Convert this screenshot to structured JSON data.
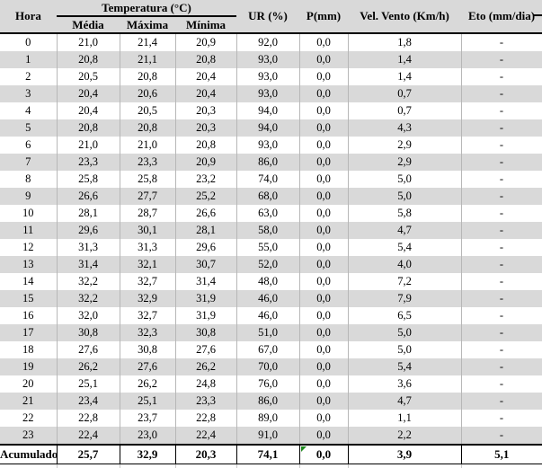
{
  "table": {
    "headers": {
      "hora": "Hora",
      "temperatura": "Temperatura (°C)",
      "media": "Média",
      "maxima": "Máxima",
      "minima": "Mínima",
      "ur": "UR (%)",
      "p": "P(mm)",
      "vento": "Vel. Vento (Km/h)",
      "eto": "Eto (mm/dia)"
    },
    "rows": [
      [
        "0",
        "21,0",
        "21,4",
        "20,9",
        "92,0",
        "0,0",
        "1,8",
        "-"
      ],
      [
        "1",
        "20,8",
        "21,1",
        "20,8",
        "93,0",
        "0,0",
        "1,4",
        "-"
      ],
      [
        "2",
        "20,5",
        "20,8",
        "20,4",
        "93,0",
        "0,0",
        "1,4",
        "-"
      ],
      [
        "3",
        "20,4",
        "20,6",
        "20,4",
        "93,0",
        "0,0",
        "0,7",
        "-"
      ],
      [
        "4",
        "20,4",
        "20,5",
        "20,3",
        "94,0",
        "0,0",
        "0,7",
        "-"
      ],
      [
        "5",
        "20,8",
        "20,8",
        "20,3",
        "94,0",
        "0,0",
        "4,3",
        "-"
      ],
      [
        "6",
        "21,0",
        "21,0",
        "20,8",
        "93,0",
        "0,0",
        "2,9",
        "-"
      ],
      [
        "7",
        "23,3",
        "23,3",
        "20,9",
        "86,0",
        "0,0",
        "2,9",
        "-"
      ],
      [
        "8",
        "25,8",
        "25,8",
        "23,2",
        "74,0",
        "0,0",
        "5,0",
        "-"
      ],
      [
        "9",
        "26,6",
        "27,7",
        "25,2",
        "68,0",
        "0,0",
        "5,0",
        "-"
      ],
      [
        "10",
        "28,1",
        "28,7",
        "26,6",
        "63,0",
        "0,0",
        "5,8",
        "-"
      ],
      [
        "11",
        "29,6",
        "30,1",
        "28,1",
        "58,0",
        "0,0",
        "4,7",
        "-"
      ],
      [
        "12",
        "31,3",
        "31,3",
        "29,6",
        "55,0",
        "0,0",
        "5,4",
        "-"
      ],
      [
        "13",
        "31,4",
        "32,1",
        "30,7",
        "52,0",
        "0,0",
        "4,0",
        "-"
      ],
      [
        "14",
        "32,2",
        "32,7",
        "31,4",
        "48,0",
        "0,0",
        "7,2",
        "-"
      ],
      [
        "15",
        "32,2",
        "32,9",
        "31,9",
        "46,0",
        "0,0",
        "7,9",
        "-"
      ],
      [
        "16",
        "32,0",
        "32,7",
        "31,9",
        "46,0",
        "0,0",
        "6,5",
        "-"
      ],
      [
        "17",
        "30,8",
        "32,3",
        "30,8",
        "51,0",
        "0,0",
        "5,0",
        "-"
      ],
      [
        "18",
        "27,6",
        "30,8",
        "27,6",
        "67,0",
        "0,0",
        "5,0",
        "-"
      ],
      [
        "19",
        "26,2",
        "27,6",
        "26,2",
        "70,0",
        "0,0",
        "5,4",
        "-"
      ],
      [
        "20",
        "25,1",
        "26,2",
        "24,8",
        "76,0",
        "0,0",
        "3,6",
        "-"
      ],
      [
        "21",
        "23,4",
        "25,1",
        "23,3",
        "86,0",
        "0,0",
        "4,7",
        "-"
      ],
      [
        "22",
        "22,8",
        "23,7",
        "22,8",
        "89,0",
        "0,0",
        "1,1",
        "-"
      ],
      [
        "23",
        "22,4",
        "23,0",
        "22,4",
        "91,0",
        "0,0",
        "2,2",
        "-"
      ]
    ],
    "summary": {
      "label": "Acumulado",
      "values": [
        "25,7",
        "32,9",
        "20,3",
        "74,1",
        "0,0",
        "3,9",
        "5,1"
      ]
    },
    "colors": {
      "header_bg": "#d9d9d9",
      "row_alt": "#d9d9d9",
      "grid": "#b7b7b7",
      "border": "#000000",
      "flag_green": "#1e8a1e"
    }
  }
}
